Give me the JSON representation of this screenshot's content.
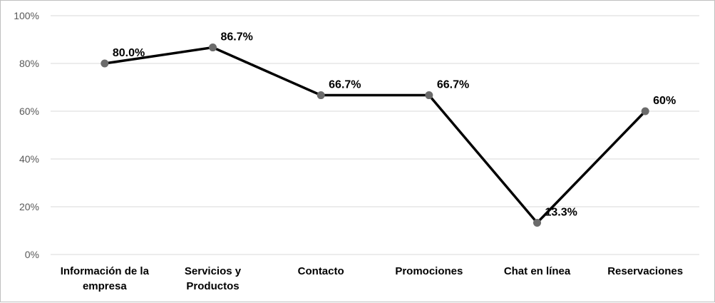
{
  "chart_data": {
    "type": "line",
    "categories": [
      "Información de la empresa",
      "Servicios y Productos",
      "Contacto",
      "Promociones",
      "Chat en línea",
      "Reservaciones"
    ],
    "category_lines": [
      [
        "Información de la",
        "empresa"
      ],
      [
        "Servicios y",
        "Productos"
      ],
      [
        "Contacto"
      ],
      [
        "Promociones"
      ],
      [
        "Chat en línea"
      ],
      [
        "Reservaciones"
      ]
    ],
    "values": [
      80.0,
      86.7,
      66.7,
      66.7,
      13.3,
      60
    ],
    "data_labels": [
      "80.0%",
      "86.7%",
      "66.7%",
      "66.7%",
      "13.3%",
      "60%"
    ],
    "ylim": [
      0,
      100
    ],
    "yticks": [
      0,
      20,
      40,
      60,
      80,
      100
    ],
    "ytick_labels": [
      "0%",
      "20%",
      "40%",
      "60%",
      "80%",
      "100%"
    ],
    "grid": true,
    "title": "",
    "xlabel": "",
    "ylabel": "",
    "colors": {
      "line": "#000000",
      "marker": "#6b6b6b",
      "grid": "#d9d9d9",
      "axis_text": "#595959"
    }
  }
}
